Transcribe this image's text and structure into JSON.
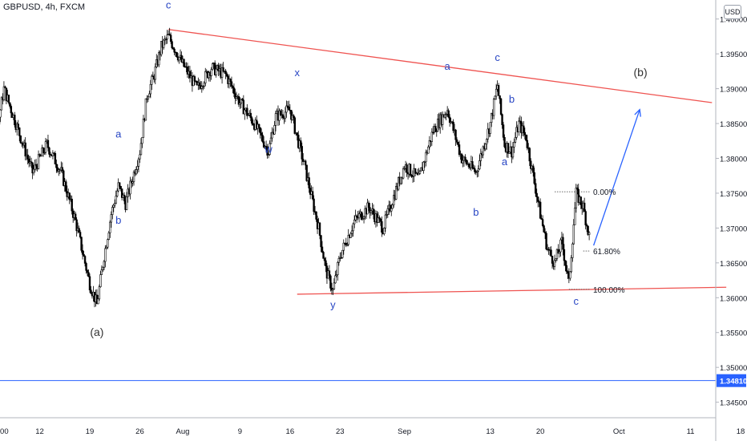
{
  "header": {
    "title": "GBPUSD, 4h, FXCM",
    "currency": "USD"
  },
  "chart_data": {
    "type": "candlestick",
    "symbol": "GBPUSD",
    "timeframe": "4h",
    "source": "FXCM",
    "y_axis": {
      "ticks": [
        "1.40000",
        "1.39500",
        "1.39000",
        "1.38500",
        "1.38000",
        "1.37500",
        "1.37000",
        "1.36500",
        "1.36000",
        "1.35500",
        "1.35000",
        "1.34500"
      ],
      "range": [
        1.343,
        1.4025
      ]
    },
    "x_axis": {
      "ticks": [
        ":00",
        "12",
        "19",
        "26",
        "Aug",
        "9",
        "16",
        "23",
        "Sep",
        "13",
        "20",
        "Oct",
        "11",
        "18"
      ]
    },
    "price_line": {
      "value": 1.3481,
      "label": "1.34810",
      "color": "#2962ff"
    },
    "price_path": [
      [
        "Jul 1",
        1.387
      ],
      [
        "Jul 3",
        1.382
      ],
      [
        "Jul 5",
        1.378
      ],
      [
        "Jul 7",
        1.39
      ],
      [
        "Jul 9",
        1.384
      ],
      [
        "Jul 11",
        1.378
      ],
      [
        "Jul 13",
        1.382
      ],
      [
        "Jul 15",
        1.378
      ],
      [
        "Jul 17",
        1.371
      ],
      [
        "Jul 19",
        1.362
      ],
      [
        "Jul 20",
        1.359
      ],
      [
        "Jul 21",
        1.366
      ],
      [
        "Jul 22",
        1.372
      ],
      [
        "Jul 23",
        1.376
      ],
      [
        "Jul 24",
        1.3735
      ],
      [
        "Jul 26",
        1.381
      ],
      [
        "Jul 27",
        1.389
      ],
      [
        "Jul 28",
        1.392
      ],
      [
        "Jul 29",
        1.396
      ],
      [
        "Jul 30",
        1.3975
      ],
      [
        "Aug 1",
        1.3935
      ],
      [
        "Aug 3",
        1.39
      ],
      [
        "Aug 5",
        1.393
      ],
      [
        "Aug 7",
        1.392
      ],
      [
        "Aug 9",
        1.388
      ],
      [
        "Aug 11",
        1.385
      ],
      [
        "Aug 13",
        1.381
      ],
      [
        "Aug 14",
        1.386
      ],
      [
        "Aug 16",
        1.387
      ],
      [
        "Aug 18",
        1.379
      ],
      [
        "Aug 20",
        1.37
      ],
      [
        "Aug 21",
        1.364
      ],
      [
        "Aug 22",
        1.361
      ],
      [
        "Aug 23",
        1.366
      ],
      [
        "Aug 25",
        1.371
      ],
      [
        "Aug 27",
        1.373
      ],
      [
        "Aug 29",
        1.37
      ],
      [
        "Sep 1",
        1.379
      ],
      [
        "Sep 3",
        1.377
      ],
      [
        "Sep 5",
        1.384
      ],
      [
        "Sep 7",
        1.387
      ],
      [
        "Sep 9",
        1.38
      ],
      [
        "Sep 11",
        1.378
      ],
      [
        "Sep 13",
        1.385
      ],
      [
        "Sep 14",
        1.3905
      ],
      [
        "Sep 15",
        1.382
      ],
      [
        "Sep 16",
        1.381
      ],
      [
        "Sep 17",
        1.385
      ],
      [
        "Sep 18",
        1.383
      ],
      [
        "Sep 20",
        1.372
      ],
      [
        "Sep 21",
        1.367
      ],
      [
        "Sep 22",
        1.365
      ],
      [
        "Sep 23",
        1.368
      ],
      [
        "Sep 24",
        1.362
      ],
      [
        "Sep 25",
        1.375
      ],
      [
        "Sep 26",
        1.373
      ],
      [
        "Sep 27",
        1.368
      ]
    ],
    "trendlines": [
      {
        "from": [
          "Jul 30",
          1.3985
        ],
        "to": [
          "Oct 14",
          1.388
        ],
        "color": "#ef5350"
      },
      {
        "from": [
          "Aug 17",
          1.3605
        ],
        "to": [
          "Oct 16",
          1.3615
        ],
        "color": "#ef5350"
      }
    ],
    "projection_arrow": {
      "from": [
        "Sep 27",
        1.3675
      ],
      "to": [
        "Oct 3",
        1.387
      ],
      "color": "#2962ff"
    },
    "fibonacci": [
      {
        "label": "0.00%",
        "value": 1.3752,
        "from": "Sep 22"
      },
      {
        "label": "61.80%",
        "value": 1.3667,
        "from": "Sep 26"
      },
      {
        "label": "100.00%",
        "value": 1.3612,
        "from": "Sep 24"
      }
    ],
    "wave_labels": [
      {
        "text": "c",
        "at": [
          "Jul 30",
          1.4015
        ]
      },
      {
        "text": "a",
        "at": [
          "Jul 23",
          1.383
        ]
      },
      {
        "text": "b",
        "at": [
          "Jul 23",
          1.3706
        ]
      },
      {
        "text": "(a)",
        "at": [
          "Jul 20",
          1.3545
        ]
      },
      {
        "text": "w",
        "at": [
          "Aug 13",
          1.3808
        ]
      },
      {
        "text": "x",
        "at": [
          "Aug 17",
          1.3918
        ]
      },
      {
        "text": "y",
        "at": [
          "Aug 22",
          1.3585
        ]
      },
      {
        "text": "a",
        "at": [
          "Sep 7",
          1.3927
        ]
      },
      {
        "text": "b",
        "at": [
          "Sep 11",
          1.3718
        ]
      },
      {
        "text": "c",
        "at": [
          "Sep 14",
          1.394
        ]
      },
      {
        "text": "b",
        "at": [
          "Sep 16",
          1.388
        ]
      },
      {
        "text": "a",
        "at": [
          "Sep 15",
          1.379
        ]
      },
      {
        "text": "c",
        "at": [
          "Sep 25",
          1.359
        ]
      },
      {
        "text": "(b)",
        "at": [
          "Oct 4",
          1.3918
        ]
      }
    ],
    "colors": {
      "wave_label": "#2745c4",
      "paren_label": "#333333",
      "candles": "#000000"
    }
  }
}
